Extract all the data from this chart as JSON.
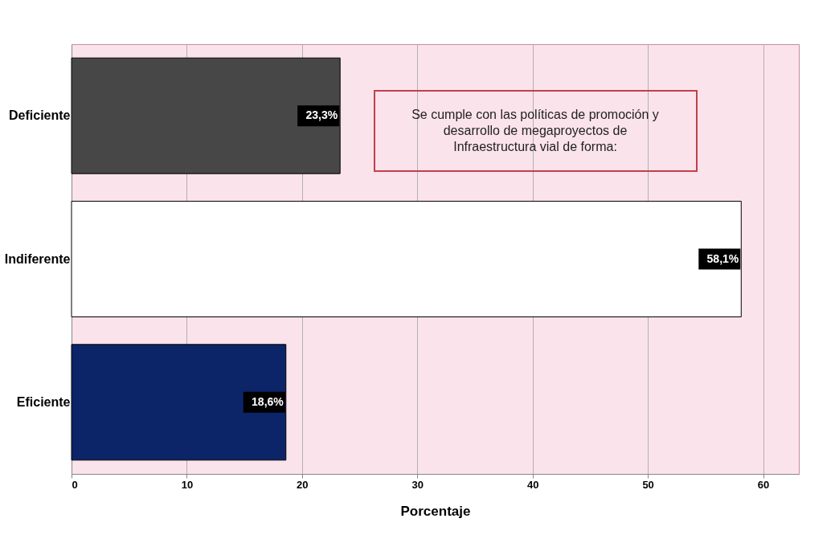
{
  "chart_data": {
    "type": "bar",
    "orientation": "horizontal",
    "title": "Se cumple con las políticas de promoción y desarrollo de megaproyectos de Infraestructura vial de forma:",
    "categories": [
      "Deficiente",
      "Indiferente",
      "Eficiente"
    ],
    "values": [
      23.3,
      58.1,
      18.6
    ],
    "colors": [
      "#474747",
      "#ffffff",
      "#0c2468"
    ],
    "value_labels": [
      "23,3%",
      "58,1%",
      "18,6%"
    ],
    "xlabel": "Porcentaje",
    "xlim": [
      0,
      63.1
    ],
    "xticks": [
      0,
      10,
      20,
      30,
      40,
      50,
      60
    ],
    "grid": "x"
  }
}
